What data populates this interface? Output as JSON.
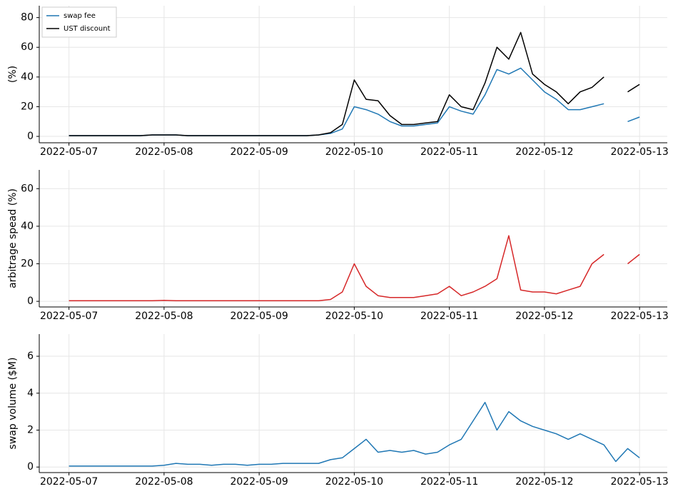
{
  "chart_data": [
    {
      "type": "line",
      "ylabel": "(%)",
      "legend": "upper left",
      "grid": true,
      "x": [
        "2022-05-07 00:00",
        "2022-05-07 03:00",
        "2022-05-07 06:00",
        "2022-05-07 09:00",
        "2022-05-07 12:00",
        "2022-05-07 15:00",
        "2022-05-07 18:00",
        "2022-05-07 21:00",
        "2022-05-08 00:00",
        "2022-05-08 03:00",
        "2022-05-08 06:00",
        "2022-05-08 09:00",
        "2022-05-08 12:00",
        "2022-05-08 15:00",
        "2022-05-08 18:00",
        "2022-05-08 21:00",
        "2022-05-09 00:00",
        "2022-05-09 03:00",
        "2022-05-09 06:00",
        "2022-05-09 09:00",
        "2022-05-09 12:00",
        "2022-05-09 15:00",
        "2022-05-09 18:00",
        "2022-05-09 21:00",
        "2022-05-10 00:00",
        "2022-05-10 03:00",
        "2022-05-10 06:00",
        "2022-05-10 09:00",
        "2022-05-10 12:00",
        "2022-05-10 15:00",
        "2022-05-10 18:00",
        "2022-05-10 21:00",
        "2022-05-11 00:00",
        "2022-05-11 03:00",
        "2022-05-11 06:00",
        "2022-05-11 09:00",
        "2022-05-11 12:00",
        "2022-05-11 15:00",
        "2022-05-11 18:00",
        "2022-05-11 21:00",
        "2022-05-12 00:00",
        "2022-05-12 03:00",
        "2022-05-12 06:00",
        "2022-05-12 09:00",
        "2022-05-12 12:00",
        "2022-05-12 15:00",
        "2022-05-12 18:00",
        "2022-05-12 21:00",
        "2022-05-13 00:00"
      ],
      "series": [
        {
          "name": "swap fee",
          "color": "#1f77b4",
          "values": [
            0.5,
            0.5,
            0.5,
            0.5,
            0.5,
            0.5,
            0.5,
            1,
            1,
            1,
            0.5,
            0.5,
            0.5,
            0.5,
            0.5,
            0.5,
            0.5,
            0.5,
            0.5,
            0.5,
            0.5,
            1,
            2,
            5,
            20,
            18,
            15,
            10,
            7,
            7,
            8,
            9,
            20,
            17,
            15,
            28,
            45,
            42,
            46,
            38,
            30,
            25,
            18,
            18,
            20,
            22,
            null,
            10,
            13
          ]
        },
        {
          "name": "UST discount",
          "color": "#000000",
          "values": [
            0.5,
            0.5,
            0.5,
            0.5,
            0.5,
            0.5,
            0.5,
            1,
            1,
            1,
            0.5,
            0.5,
            0.5,
            0.5,
            0.5,
            0.5,
            0.5,
            0.5,
            0.5,
            0.5,
            0.5,
            1,
            2.5,
            8,
            38,
            25,
            24,
            14,
            8,
            8,
            9,
            10,
            28,
            20,
            18,
            36,
            60,
            52,
            70,
            42,
            35,
            30,
            22,
            30,
            33,
            40,
            null,
            30,
            35
          ]
        }
      ],
      "xlim": [
        "2022-05-06 16:30",
        "2022-05-13 07:00"
      ],
      "xticks": [
        "2022-05-07",
        "2022-05-08",
        "2022-05-09",
        "2022-05-10",
        "2022-05-11",
        "2022-05-12",
        "2022-05-13"
      ],
      "ylim": [
        -4.3,
        88
      ],
      "yticks": [
        0,
        20,
        40,
        60,
        80
      ]
    },
    {
      "type": "line",
      "ylabel": "arbitrage spead (%)",
      "grid": true,
      "x": [
        "2022-05-07 00:00",
        "2022-05-07 03:00",
        "2022-05-07 06:00",
        "2022-05-07 09:00",
        "2022-05-07 12:00",
        "2022-05-07 15:00",
        "2022-05-07 18:00",
        "2022-05-07 21:00",
        "2022-05-08 00:00",
        "2022-05-08 03:00",
        "2022-05-08 06:00",
        "2022-05-08 09:00",
        "2022-05-08 12:00",
        "2022-05-08 15:00",
        "2022-05-08 18:00",
        "2022-05-08 21:00",
        "2022-05-09 00:00",
        "2022-05-09 03:00",
        "2022-05-09 06:00",
        "2022-05-09 09:00",
        "2022-05-09 12:00",
        "2022-05-09 15:00",
        "2022-05-09 18:00",
        "2022-05-09 21:00",
        "2022-05-10 00:00",
        "2022-05-10 03:00",
        "2022-05-10 06:00",
        "2022-05-10 09:00",
        "2022-05-10 12:00",
        "2022-05-10 15:00",
        "2022-05-10 18:00",
        "2022-05-10 21:00",
        "2022-05-11 00:00",
        "2022-05-11 03:00",
        "2022-05-11 06:00",
        "2022-05-11 09:00",
        "2022-05-11 12:00",
        "2022-05-11 15:00",
        "2022-05-11 18:00",
        "2022-05-11 21:00",
        "2022-05-12 00:00",
        "2022-05-12 03:00",
        "2022-05-12 06:00",
        "2022-05-12 09:00",
        "2022-05-12 12:00",
        "2022-05-12 15:00",
        "2022-05-12 18:00",
        "2022-05-12 21:00",
        "2022-05-13 00:00"
      ],
      "series": [
        {
          "color": "#d62728",
          "values": [
            0.3,
            0.3,
            0.3,
            0.3,
            0.3,
            0.3,
            0.3,
            0.3,
            0.5,
            0.3,
            0.3,
            0.3,
            0.3,
            0.3,
            0.3,
            0.3,
            0.3,
            0.3,
            0.3,
            0.3,
            0.3,
            0.3,
            1,
            5,
            20,
            8,
            3,
            2,
            2,
            2,
            3,
            4,
            8,
            3,
            5,
            8,
            12,
            35,
            6,
            5,
            5,
            4,
            6,
            8,
            20,
            25,
            null,
            20,
            25
          ]
        }
      ],
      "xlim": [
        "2022-05-06 16:30",
        "2022-05-13 07:00"
      ],
      "xticks": [
        "2022-05-07",
        "2022-05-08",
        "2022-05-09",
        "2022-05-10",
        "2022-05-11",
        "2022-05-12",
        "2022-05-13"
      ],
      "ylim": [
        -3,
        70
      ],
      "yticks": [
        0,
        20,
        40,
        60
      ]
    },
    {
      "type": "line",
      "ylabel": "swap volume ($M)",
      "grid": true,
      "x": [
        "2022-05-07 00:00",
        "2022-05-07 03:00",
        "2022-05-07 06:00",
        "2022-05-07 09:00",
        "2022-05-07 12:00",
        "2022-05-07 15:00",
        "2022-05-07 18:00",
        "2022-05-07 21:00",
        "2022-05-08 00:00",
        "2022-05-08 03:00",
        "2022-05-08 06:00",
        "2022-05-08 09:00",
        "2022-05-08 12:00",
        "2022-05-08 15:00",
        "2022-05-08 18:00",
        "2022-05-08 21:00",
        "2022-05-09 00:00",
        "2022-05-09 03:00",
        "2022-05-09 06:00",
        "2022-05-09 09:00",
        "2022-05-09 12:00",
        "2022-05-09 15:00",
        "2022-05-09 18:00",
        "2022-05-09 21:00",
        "2022-05-10 00:00",
        "2022-05-10 03:00",
        "2022-05-10 06:00",
        "2022-05-10 09:00",
        "2022-05-10 12:00",
        "2022-05-10 15:00",
        "2022-05-10 18:00",
        "2022-05-10 21:00",
        "2022-05-11 00:00",
        "2022-05-11 03:00",
        "2022-05-11 06:00",
        "2022-05-11 09:00",
        "2022-05-11 12:00",
        "2022-05-11 15:00",
        "2022-05-11 18:00",
        "2022-05-11 21:00",
        "2022-05-12 00:00",
        "2022-05-12 03:00",
        "2022-05-12 06:00",
        "2022-05-12 09:00",
        "2022-05-12 12:00",
        "2022-05-12 15:00",
        "2022-05-12 18:00",
        "2022-05-12 21:00",
        "2022-05-13 00:00"
      ],
      "series": [
        {
          "color": "#1f77b4",
          "values": [
            0.05,
            0.05,
            0.05,
            0.05,
            0.05,
            0.05,
            0.05,
            0.05,
            0.1,
            0.2,
            0.15,
            0.15,
            0.1,
            0.15,
            0.15,
            0.1,
            0.15,
            0.15,
            0.2,
            0.2,
            0.2,
            0.2,
            0.4,
            0.5,
            1,
            1.5,
            0.8,
            0.9,
            0.8,
            0.9,
            0.7,
            0.8,
            1.2,
            1.5,
            2.5,
            3.5,
            2,
            3,
            2.5,
            2.2,
            2,
            1.8,
            1.5,
            1.8,
            1.5,
            1.2,
            0.3,
            1,
            0.5
          ]
        }
      ],
      "xlim": [
        "2022-05-06 16:30",
        "2022-05-13 07:00"
      ],
      "xticks": [
        "2022-05-07",
        "2022-05-08",
        "2022-05-09",
        "2022-05-10",
        "2022-05-11",
        "2022-05-12",
        "2022-05-13"
      ],
      "ylim": [
        -0.3,
        7.2
      ],
      "yticks": [
        0,
        2,
        4,
        6
      ]
    }
  ]
}
